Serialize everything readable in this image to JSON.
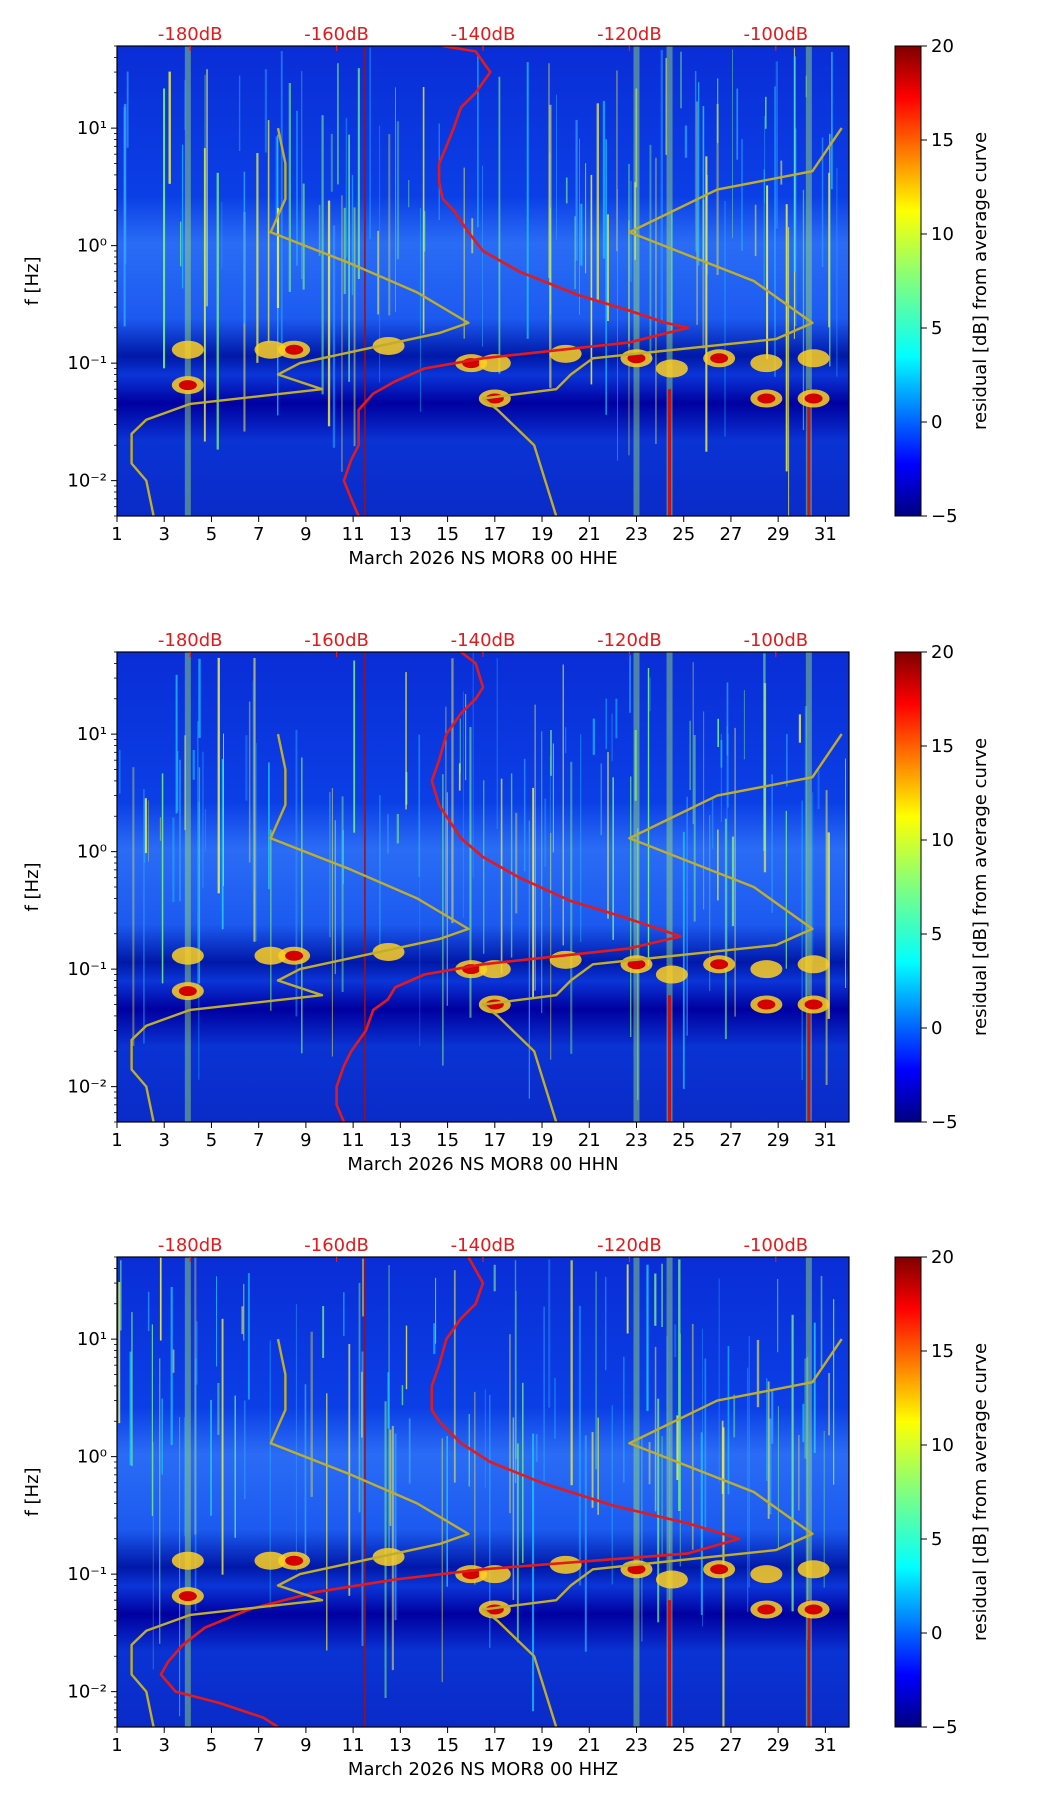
{
  "chart_data": [
    {
      "type": "heatmap",
      "title": "",
      "xlabel": "March 2026 NS MOR8 00 HHE",
      "ylabel": "f [Hz]",
      "x_ticks": [
        "1",
        "3",
        "5",
        "7",
        "9",
        "11",
        "13",
        "15",
        "17",
        "19",
        "21",
        "23",
        "25",
        "27",
        "29",
        "31"
      ],
      "x_range": [
        1,
        32
      ],
      "y_ticks": [
        "10⁻²",
        "10⁰",
        "10¹",
        "10⁻¹"
      ],
      "y_tick_values": [
        0.01,
        1,
        10,
        0.1
      ],
      "ylim": [
        0.005,
        50
      ],
      "yscale": "log",
      "top_axis_ticks": [
        "-180dB",
        "-160dB",
        "-140dB",
        "-120dB",
        "-100dB"
      ],
      "top_axis_values": [
        -180,
        -160,
        -140,
        -120,
        -100
      ],
      "top_axis_range": [
        -190,
        -90
      ],
      "colorbar": {
        "label": "residual [dB] from average curve",
        "ticks": [
          "−5",
          "0",
          "5",
          "10",
          "15",
          "20"
        ],
        "tick_values": [
          -5,
          0,
          5,
          10,
          15,
          20
        ],
        "range": [
          -5,
          20
        ],
        "colormap": "jet"
      },
      "curves": [
        {
          "name": "average PSD",
          "color": "#e31a1c",
          "unit": "dB",
          "points": [
            [
              -145.5,
              50
            ],
            [
              -141,
              45
            ],
            [
              -139,
              30
            ],
            [
              -141,
              20
            ],
            [
              -143,
              15
            ],
            [
              -144,
              10
            ],
            [
              -145,
              7
            ],
            [
              -146,
              5
            ],
            [
              -146,
              3.5
            ],
            [
              -145.5,
              2.5
            ],
            [
              -144,
              2
            ],
            [
              -142,
              1.3
            ],
            [
              -140,
              0.9
            ],
            [
              -135,
              0.6
            ],
            [
              -127,
              0.38
            ],
            [
              -120,
              0.28
            ],
            [
              -115,
              0.22
            ],
            [
              -112,
              0.2
            ],
            [
              -120,
              0.15
            ],
            [
              -140,
              0.11
            ],
            [
              -148,
              0.09
            ],
            [
              -152,
              0.07
            ],
            [
              -155,
              0.055
            ],
            [
              -157,
              0.04
            ],
            [
              -157,
              0.03
            ],
            [
              -157,
              0.02
            ],
            [
              -158,
              0.015
            ],
            [
              -159,
              0.01
            ],
            [
              -158,
              0.007
            ],
            [
              -157,
              0.005
            ]
          ]
        },
        {
          "name": "NLNM",
          "color": "#bfad2d",
          "unit": "dB",
          "points": [
            [
              -168,
              10
            ],
            [
              -167,
              5
            ],
            [
              -167,
              2.5
            ],
            [
              -169,
              1.3
            ],
            [
              -158,
              0.7
            ],
            [
              -149,
              0.4
            ],
            [
              -142,
              0.22
            ],
            [
              -146,
              0.18
            ],
            [
              -165,
              0.1
            ],
            [
              -168,
              0.08
            ],
            [
              -162,
              0.06
            ],
            [
              -180,
              0.045
            ],
            [
              -186,
              0.033
            ],
            [
              -188,
              0.025
            ],
            [
              -188,
              0.014
            ],
            [
              -186,
              0.01
            ],
            [
              -185,
              0.005
            ]
          ]
        },
        {
          "name": "NHNM",
          "color": "#bfad2d",
          "unit": "dB",
          "points": [
            [
              -91,
              10
            ],
            [
              -95,
              4.3
            ],
            [
              -108,
              3
            ],
            [
              -120,
              1.3
            ],
            [
              -103,
              0.5
            ],
            [
              -95,
              0.22
            ],
            [
              -100,
              0.16
            ],
            [
              -125,
              0.11
            ],
            [
              -128,
              0.08
            ],
            [
              -130,
              0.06
            ],
            [
              -140,
              0.05
            ],
            [
              -138,
              0.04
            ],
            [
              -133,
              0.02
            ],
            [
              -130,
              0.005
            ]
          ]
        }
      ]
    },
    {
      "type": "heatmap",
      "title": "",
      "xlabel": "March 2026 NS MOR8 00 HHN",
      "ylabel": "f [Hz]",
      "x_ticks": [
        "1",
        "3",
        "5",
        "7",
        "9",
        "11",
        "13",
        "15",
        "17",
        "19",
        "21",
        "23",
        "25",
        "27",
        "29",
        "31"
      ],
      "x_range": [
        1,
        32
      ],
      "y_ticks": [
        "10⁻²",
        "10⁰",
        "10¹",
        "10⁻¹"
      ],
      "y_tick_values": [
        0.01,
        1,
        10,
        0.1
      ],
      "ylim": [
        0.005,
        50
      ],
      "yscale": "log",
      "top_axis_ticks": [
        "-180dB",
        "-160dB",
        "-140dB",
        "-120dB",
        "-100dB"
      ],
      "top_axis_values": [
        -180,
        -160,
        -140,
        -120,
        -100
      ],
      "top_axis_range": [
        -190,
        -90
      ],
      "colorbar": {
        "label": "residual [dB] from average curve",
        "ticks": [
          "−5",
          "0",
          "5",
          "10",
          "15",
          "20"
        ],
        "tick_values": [
          -5,
          0,
          5,
          10,
          15,
          20
        ],
        "range": [
          -5,
          20
        ],
        "colormap": "jet"
      },
      "curves": [
        {
          "name": "average PSD",
          "color": "#e31a1c",
          "unit": "dB",
          "points": [
            [
              -143,
              50
            ],
            [
              -141,
              40
            ],
            [
              -140,
              25
            ],
            [
              -141,
              20
            ],
            [
              -143,
              15
            ],
            [
              -145,
              10
            ],
            [
              -146,
              6
            ],
            [
              -147,
              4
            ],
            [
              -146,
              2.5
            ],
            [
              -145,
              2
            ],
            [
              -143,
              1.3
            ],
            [
              -140,
              0.9
            ],
            [
              -135,
              0.6
            ],
            [
              -128,
              0.38
            ],
            [
              -121,
              0.28
            ],
            [
              -116,
              0.22
            ],
            [
              -113,
              0.19
            ],
            [
              -120,
              0.15
            ],
            [
              -140,
              0.11
            ],
            [
              -148,
              0.09
            ],
            [
              -152,
              0.07
            ],
            [
              -153,
              0.055
            ],
            [
              -155,
              0.045
            ],
            [
              -156,
              0.03
            ],
            [
              -158,
              0.02
            ],
            [
              -159,
              0.015
            ],
            [
              -160,
              0.01
            ],
            [
              -160,
              0.007
            ],
            [
              -159,
              0.005
            ]
          ]
        },
        {
          "name": "NLNM",
          "color": "#bfad2d",
          "unit": "dB",
          "points": [
            [
              -168,
              10
            ],
            [
              -167,
              5
            ],
            [
              -167,
              2.5
            ],
            [
              -169,
              1.3
            ],
            [
              -158,
              0.7
            ],
            [
              -149,
              0.4
            ],
            [
              -142,
              0.22
            ],
            [
              -146,
              0.18
            ],
            [
              -165,
              0.1
            ],
            [
              -168,
              0.08
            ],
            [
              -162,
              0.06
            ],
            [
              -180,
              0.045
            ],
            [
              -186,
              0.033
            ],
            [
              -188,
              0.025
            ],
            [
              -188,
              0.014
            ],
            [
              -186,
              0.01
            ],
            [
              -185,
              0.005
            ]
          ]
        },
        {
          "name": "NHNM",
          "color": "#bfad2d",
          "unit": "dB",
          "points": [
            [
              -91,
              10
            ],
            [
              -95,
              4.3
            ],
            [
              -108,
              3
            ],
            [
              -120,
              1.3
            ],
            [
              -103,
              0.5
            ],
            [
              -95,
              0.22
            ],
            [
              -100,
              0.16
            ],
            [
              -125,
              0.11
            ],
            [
              -128,
              0.08
            ],
            [
              -130,
              0.06
            ],
            [
              -140,
              0.05
            ],
            [
              -138,
              0.04
            ],
            [
              -133,
              0.02
            ],
            [
              -130,
              0.005
            ]
          ]
        }
      ]
    },
    {
      "type": "heatmap",
      "title": "",
      "xlabel": "March 2026 NS MOR8 00 HHZ",
      "ylabel": "f [Hz]",
      "x_ticks": [
        "1",
        "3",
        "5",
        "7",
        "9",
        "11",
        "13",
        "15",
        "17",
        "19",
        "21",
        "23",
        "25",
        "27",
        "29",
        "31"
      ],
      "x_range": [
        1,
        32
      ],
      "y_ticks": [
        "10⁻²",
        "10⁰",
        "10¹",
        "10⁻¹"
      ],
      "y_tick_values": [
        0.01,
        1,
        10,
        0.1
      ],
      "ylim": [
        0.005,
        50
      ],
      "yscale": "log",
      "top_axis_ticks": [
        "-180dB",
        "-160dB",
        "-140dB",
        "-120dB",
        "-100dB"
      ],
      "top_axis_values": [
        -180,
        -160,
        -140,
        -120,
        -100
      ],
      "top_axis_range": [
        -190,
        -90
      ],
      "colorbar": {
        "label": "residual [dB] from average curve",
        "ticks": [
          "−5",
          "0",
          "5",
          "10",
          "15",
          "20"
        ],
        "tick_values": [
          -5,
          0,
          5,
          10,
          15,
          20
        ],
        "range": [
          -5,
          20
        ],
        "colormap": "jet"
      },
      "curves": [
        {
          "name": "average PSD",
          "color": "#e31a1c",
          "unit": "dB",
          "points": [
            [
              -142,
              50
            ],
            [
              -140,
              30
            ],
            [
              -141,
              20
            ],
            [
              -143,
              15
            ],
            [
              -145,
              10
            ],
            [
              -146,
              6
            ],
            [
              -147,
              4
            ],
            [
              -147,
              2.5
            ],
            [
              -146,
              2
            ],
            [
              -143,
              1.3
            ],
            [
              -139,
              0.9
            ],
            [
              -132,
              0.6
            ],
            [
              -122,
              0.38
            ],
            [
              -112,
              0.27
            ],
            [
              -105,
              0.2
            ],
            [
              -112,
              0.15
            ],
            [
              -140,
              0.11
            ],
            [
              -152,
              0.09
            ],
            [
              -163,
              0.07
            ],
            [
              -172,
              0.05
            ],
            [
              -178,
              0.035
            ],
            [
              -181,
              0.025
            ],
            [
              -183,
              0.018
            ],
            [
              -184,
              0.014
            ],
            [
              -182,
              0.01
            ],
            [
              -176,
              0.008
            ],
            [
              -170,
              0.006
            ],
            [
              -168,
              0.005
            ]
          ]
        },
        {
          "name": "NLNM",
          "color": "#bfad2d",
          "unit": "dB",
          "points": [
            [
              -168,
              10
            ],
            [
              -167,
              5
            ],
            [
              -167,
              2.5
            ],
            [
              -169,
              1.3
            ],
            [
              -158,
              0.7
            ],
            [
              -149,
              0.4
            ],
            [
              -142,
              0.22
            ],
            [
              -146,
              0.18
            ],
            [
              -165,
              0.1
            ],
            [
              -168,
              0.08
            ],
            [
              -162,
              0.06
            ],
            [
              -180,
              0.045
            ],
            [
              -186,
              0.033
            ],
            [
              -188,
              0.025
            ],
            [
              -188,
              0.014
            ],
            [
              -186,
              0.01
            ],
            [
              -185,
              0.005
            ]
          ]
        },
        {
          "name": "NHNM",
          "color": "#bfad2d",
          "unit": "dB",
          "points": [
            [
              -91,
              10
            ],
            [
              -95,
              4.3
            ],
            [
              -108,
              3
            ],
            [
              -120,
              1.3
            ],
            [
              -103,
              0.5
            ],
            [
              -95,
              0.22
            ],
            [
              -100,
              0.16
            ],
            [
              -125,
              0.11
            ],
            [
              -128,
              0.08
            ],
            [
              -130,
              0.06
            ],
            [
              -140,
              0.05
            ],
            [
              -138,
              0.04
            ],
            [
              -133,
              0.02
            ],
            [
              -130,
              0.005
            ]
          ]
        }
      ]
    }
  ]
}
